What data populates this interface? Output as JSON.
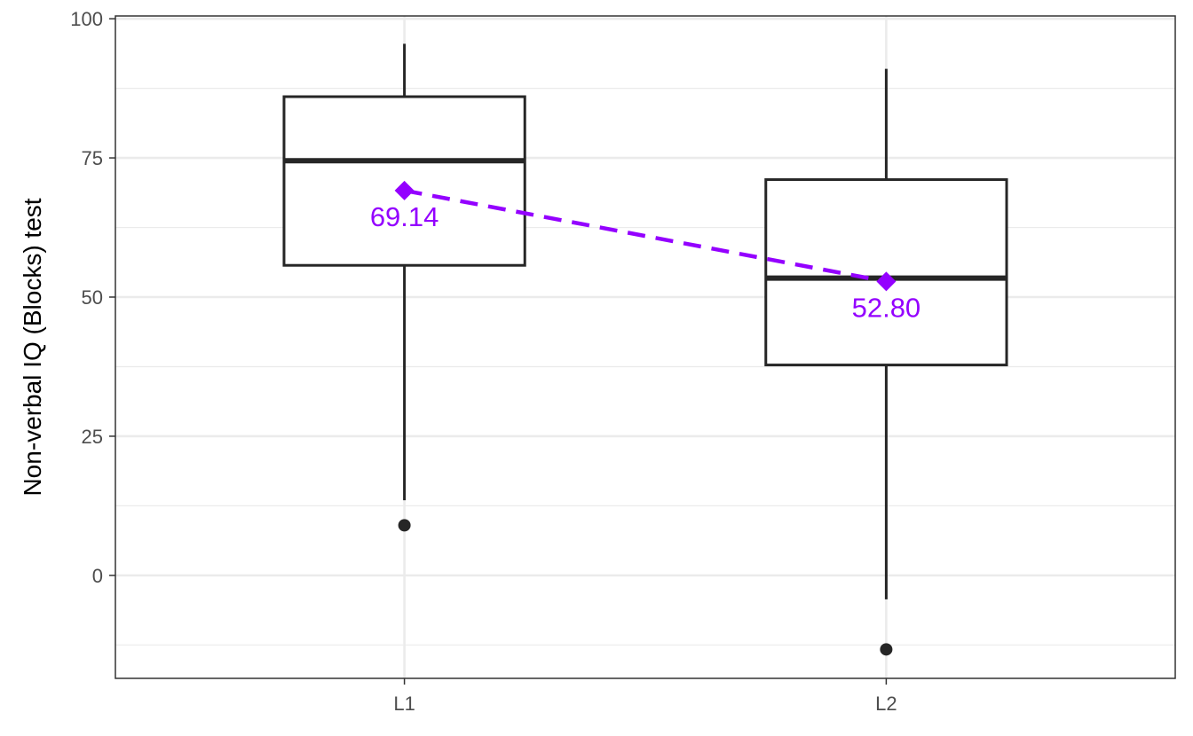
{
  "chart_data": {
    "type": "boxplot",
    "title": "",
    "xlabel": "",
    "ylabel": "Non-verbal IQ (Blocks) test",
    "ylim": [
      -18.5,
      100.5
    ],
    "yticks": [
      0,
      25,
      50,
      75,
      100
    ],
    "ytick_labels": [
      "0",
      "25",
      "50",
      "75",
      "100"
    ],
    "grid": true,
    "legend": "none",
    "categories": [
      "L1",
      "L2"
    ],
    "boxes": [
      {
        "category": "L1",
        "whisker_low": 13.5,
        "q1": 55.7,
        "median": 74.5,
        "q3": 86.0,
        "whisker_high": 95.5,
        "outliers": [
          9.0
        ]
      },
      {
        "category": "L2",
        "whisker_low": -4.3,
        "q1": 37.8,
        "median": 53.4,
        "q3": 71.1,
        "whisker_high": 91.0,
        "outliers": [
          -13.3
        ]
      }
    ],
    "means": {
      "values": [
        69.14,
        52.8
      ],
      "labels": [
        "69.14",
        "52.80"
      ],
      "color": "#9400ff",
      "line_style": "dashed"
    },
    "colors": {
      "box": "#262626",
      "grid": "#ebebeb",
      "panel_border": "#333333"
    }
  }
}
